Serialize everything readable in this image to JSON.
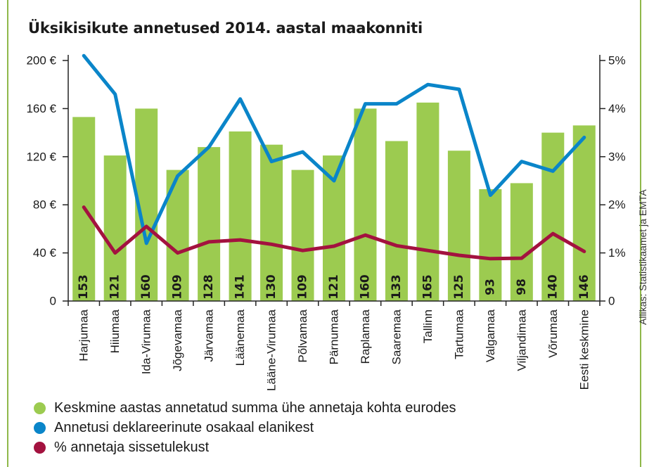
{
  "title": "Üksikisikute annetused 2014. aastal maakonniti",
  "source": "Allikas: Statistikaamet ja EMTA",
  "colors": {
    "bars": "#9ccb50",
    "line_share": "#0a85c9",
    "line_income": "#a3123f",
    "frame": "#8fb84a",
    "text": "#1a1a1a"
  },
  "chart_data": {
    "type": "bar",
    "categories": [
      "Harjumaa",
      "Hiiumaa",
      "Ida-Virumaa",
      "Jõgevamaa",
      "Järvamaa",
      "Läänemaa",
      "Lääne-Virumaa",
      "Põlvamaa",
      "Pärnumaa",
      "Raplamaa",
      "Saaremaa",
      "Tallinn",
      "Tartumaa",
      "Valgamaa",
      "Viljandimaa",
      "Võrumaa",
      "Eesti keskmine"
    ],
    "left_axis": {
      "ticks": [
        "200 €",
        "160 €",
        "120 €",
        "80 €",
        "40 €",
        "0"
      ],
      "tick_values": [
        200,
        160,
        120,
        80,
        40,
        0
      ],
      "range": [
        0,
        200
      ]
    },
    "right_axis": {
      "ticks": [
        "5%",
        "4%",
        "3%",
        "2%",
        "1%",
        "0"
      ],
      "tick_values": [
        5,
        4,
        3,
        2,
        1,
        0
      ],
      "range": [
        0,
        5
      ]
    },
    "series": [
      {
        "name": "Keskmine aastas annetatud summa ühe annetaja kohta eurodes",
        "type": "bar",
        "axis": "left",
        "values": [
          153,
          121,
          160,
          109,
          128,
          141,
          130,
          109,
          121,
          160,
          133,
          165,
          125,
          93,
          98,
          140,
          146
        ],
        "labels": [
          "153",
          "121",
          "160",
          "109",
          "128",
          "141",
          "130",
          "109",
          "121",
          "160",
          "133",
          "165",
          "125",
          "93",
          "98",
          "140",
          "146"
        ]
      },
      {
        "name": "Annetusi deklareerinute osakaal elanikest",
        "type": "line",
        "axis": "right",
        "values": [
          5.1,
          4.3,
          1.2,
          2.6,
          3.2,
          4.2,
          2.9,
          3.1,
          2.5,
          4.1,
          4.1,
          4.5,
          4.4,
          2.2,
          2.9,
          2.7,
          3.4
        ]
      },
      {
        "name": "% annetaja sissetulekust",
        "type": "line",
        "axis": "right",
        "values": [
          1.95,
          1.0,
          1.55,
          1.0,
          1.23,
          1.27,
          1.18,
          1.05,
          1.14,
          1.37,
          1.15,
          1.05,
          0.95,
          0.88,
          0.89,
          1.4,
          1.03
        ]
      }
    ],
    "grid": false,
    "legend_position": "bottom-left"
  }
}
